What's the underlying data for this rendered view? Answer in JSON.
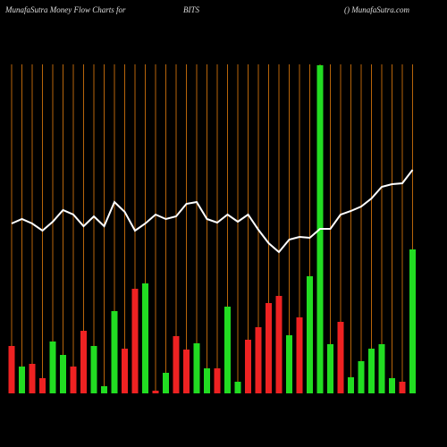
{
  "chart_data": {
    "type": "bar",
    "title": "MunafaSutra  Money Flow  Charts for",
    "symbol": "BITS",
    "source": "() MunafaSutra.com",
    "categories": [
      null,
      null,
      null,
      null,
      null,
      null,
      null,
      null,
      null,
      null,
      null,
      null,
      null,
      null,
      null,
      null,
      null,
      null,
      null,
      null,
      null,
      null,
      null,
      null,
      null,
      null,
      null,
      null,
      null,
      null,
      null,
      null,
      null,
      null,
      null,
      null,
      null,
      null,
      null,
      null
    ],
    "values": [
      53,
      30,
      33,
      17,
      58,
      43,
      30,
      70,
      53,
      8,
      92,
      50,
      117,
      123,
      3,
      23,
      64,
      49,
      56,
      28,
      28,
      97,
      13,
      60,
      74,
      101,
      109,
      65,
      85,
      131,
      367,
      55,
      80,
      18,
      36,
      50,
      55,
      17,
      13,
      161
    ],
    "colors": [
      "#ee2222",
      "#22dd22",
      "#ee2222",
      "#ee2222",
      "#22dd22",
      "#22dd22",
      "#ee2222",
      "#ee2222",
      "#22dd22",
      "#22dd22",
      "#22dd22",
      "#ee2222",
      "#ee2222",
      "#22dd22",
      "#ee2222",
      "#22dd22",
      "#ee2222",
      "#ee2222",
      "#22dd22",
      "#22dd22",
      "#ee2222",
      "#22dd22",
      "#22dd22",
      "#ee2222",
      "#ee2222",
      "#ee2222",
      "#ee2222",
      "#22dd22",
      "#ee2222",
      "#22dd22",
      "#22dd22",
      "#22dd22",
      "#ee2222",
      "#22dd22",
      "#22dd22",
      "#22dd22",
      "#22dd22",
      "#22dd22",
      "#ee2222",
      "#22dd22"
    ],
    "line": {
      "color": "#ffffff",
      "values": [
        190,
        195,
        190,
        182,
        192,
        205,
        200,
        187,
        198,
        187,
        214,
        203,
        182,
        190,
        200,
        195,
        198,
        212,
        214,
        195,
        191,
        200,
        192,
        200,
        183,
        168,
        158,
        172,
        175,
        174,
        184,
        184,
        200,
        204,
        209,
        218,
        231,
        234,
        235,
        250
      ]
    },
    "grid_color": "#b8650a",
    "ylim": [
      0,
      380
    ]
  }
}
